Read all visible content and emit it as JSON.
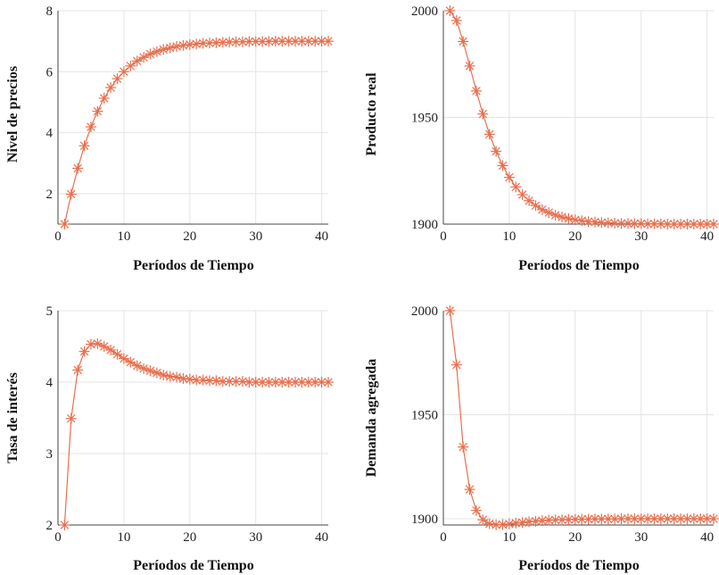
{
  "colors": {
    "series": "#e8704f"
  },
  "chart_data": [
    {
      "type": "line",
      "id": "nivel-de-precios",
      "title": "",
      "xlabel": "Períodos de Tiempo",
      "ylabel": "Nivel de precios",
      "xlim": [
        0,
        41
      ],
      "ylim": [
        1,
        8
      ],
      "xticks": [
        0,
        10,
        20,
        30,
        40
      ],
      "yticks": [
        2,
        4,
        6,
        8
      ],
      "x": [
        1,
        2,
        3,
        4,
        5,
        6,
        7,
        8,
        9,
        10,
        11,
        12,
        13,
        14,
        15,
        16,
        17,
        18,
        19,
        20,
        21,
        22,
        23,
        24,
        25,
        26,
        27,
        28,
        29,
        30,
        31,
        32,
        33,
        34,
        35,
        36,
        37,
        38,
        39,
        40,
        41
      ],
      "values": [
        1.0,
        1.98,
        2.83,
        3.57,
        4.19,
        4.7,
        5.13,
        5.48,
        5.77,
        6.0,
        6.19,
        6.35,
        6.47,
        6.58,
        6.66,
        6.73,
        6.78,
        6.83,
        6.86,
        6.89,
        6.91,
        6.93,
        6.94,
        6.95,
        6.96,
        6.97,
        6.98,
        6.98,
        6.99,
        6.99,
        6.99,
        6.99,
        7.0,
        7.0,
        7.0,
        7.0,
        7.0,
        7.0,
        7.0,
        7.0,
        7.0
      ]
    },
    {
      "type": "line",
      "id": "producto-real",
      "title": "",
      "xlabel": "Períodos de Tiempo",
      "ylabel": "Producto real",
      "xlim": [
        0,
        41
      ],
      "ylim": [
        1900,
        2000
      ],
      "xticks": [
        0,
        10,
        20,
        30,
        40
      ],
      "yticks": [
        1900,
        1950,
        2000
      ],
      "x": [
        1,
        2,
        3,
        4,
        5,
        6,
        7,
        8,
        9,
        10,
        11,
        12,
        13,
        14,
        15,
        16,
        17,
        18,
        19,
        20,
        21,
        22,
        23,
        24,
        25,
        26,
        27,
        28,
        29,
        30,
        31,
        32,
        33,
        34,
        35,
        36,
        37,
        38,
        39,
        40,
        41
      ],
      "values": [
        2000.0,
        1995.4,
        1985.6,
        1974.1,
        1962.4,
        1951.6,
        1942.1,
        1934.1,
        1927.4,
        1921.9,
        1917.4,
        1913.8,
        1911.0,
        1908.7,
        1906.8,
        1905.4,
        1904.2,
        1903.3,
        1902.6,
        1902.0,
        1901.6,
        1901.2,
        1901.0,
        1900.7,
        1900.6,
        1900.4,
        1900.3,
        1900.3,
        1900.2,
        1900.2,
        1900.1,
        1900.1,
        1900.1,
        1900.0,
        1900.0,
        1900.0,
        1900.0,
        1900.0,
        1900.0,
        1900.0,
        1900.0
      ]
    },
    {
      "type": "line",
      "id": "tasa-de-interes",
      "title": "",
      "xlabel": "Períodos de Tiempo",
      "ylabel": "Tasa de interés",
      "xlim": [
        0,
        41
      ],
      "ylim": [
        2,
        5
      ],
      "xticks": [
        0,
        10,
        20,
        30,
        40
      ],
      "yticks": [
        2,
        3,
        4,
        5
      ],
      "x": [
        1,
        2,
        3,
        4,
        5,
        6,
        7,
        8,
        9,
        10,
        11,
        12,
        13,
        14,
        15,
        16,
        17,
        18,
        19,
        20,
        21,
        22,
        23,
        24,
        25,
        26,
        27,
        28,
        29,
        30,
        31,
        32,
        33,
        34,
        35,
        36,
        37,
        38,
        39,
        40,
        41
      ],
      "values": [
        2.0,
        3.49,
        4.17,
        4.43,
        4.53,
        4.54,
        4.5,
        4.45,
        4.39,
        4.33,
        4.28,
        4.23,
        4.19,
        4.16,
        4.13,
        4.1,
        4.08,
        4.07,
        4.05,
        4.04,
        4.03,
        4.03,
        4.02,
        4.02,
        4.01,
        4.01,
        4.01,
        4.01,
        4.0,
        4.0,
        4.0,
        4.0,
        4.0,
        4.0,
        4.0,
        4.0,
        4.0,
        4.0,
        4.0,
        4.0,
        4.0
      ]
    },
    {
      "type": "line",
      "id": "demanda-agregada",
      "title": "",
      "xlabel": "Períodos de Tiempo",
      "ylabel": "Demanda agregada",
      "xlim": [
        0,
        41
      ],
      "ylim": [
        1897,
        2000
      ],
      "xticks": [
        0,
        10,
        20,
        30,
        40
      ],
      "yticks": [
        1900,
        1950,
        2000
      ],
      "x": [
        1,
        2,
        3,
        4,
        5,
        6,
        7,
        8,
        9,
        10,
        11,
        12,
        13,
        14,
        15,
        16,
        17,
        18,
        19,
        20,
        21,
        22,
        23,
        24,
        25,
        26,
        27,
        28,
        29,
        30,
        31,
        32,
        33,
        34,
        35,
        36,
        37,
        38,
        39,
        40,
        41
      ],
      "values": [
        2000.0,
        1974.0,
        1934.5,
        1914.1,
        1904.0,
        1899.5,
        1897.6,
        1897.1,
        1897.2,
        1897.5,
        1897.9,
        1898.2,
        1898.6,
        1898.8,
        1899.1,
        1899.3,
        1899.4,
        1899.5,
        1899.6,
        1899.7,
        1899.8,
        1899.8,
        1899.9,
        1899.9,
        1899.9,
        1899.9,
        1900.0,
        1900.0,
        1900.0,
        1900.0,
        1900.0,
        1900.0,
        1900.0,
        1900.0,
        1900.0,
        1900.0,
        1900.0,
        1900.0,
        1900.0,
        1900.0,
        1900.0
      ]
    }
  ]
}
